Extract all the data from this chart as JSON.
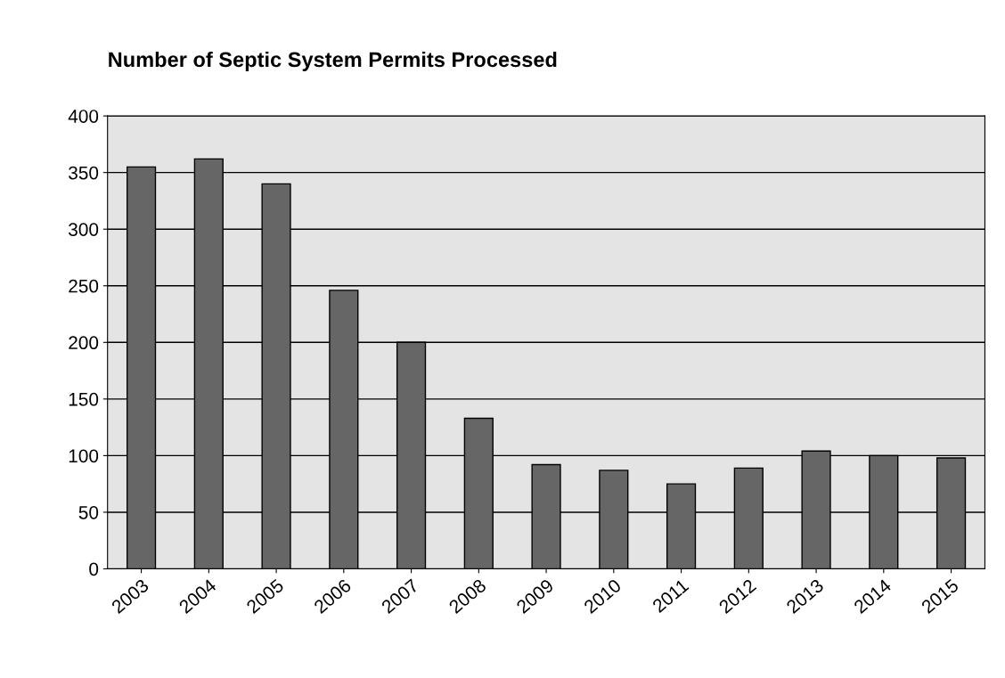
{
  "chart_data": {
    "type": "bar",
    "title": "Number of Septic System Permits Processed",
    "categories": [
      "2003",
      "2004",
      "2005",
      "2006",
      "2007",
      "2008",
      "2009",
      "2010",
      "2011",
      "2012",
      "2013",
      "2014",
      "2015"
    ],
    "values": [
      355,
      362,
      340,
      246,
      200,
      133,
      92,
      87,
      75,
      89,
      104,
      100,
      98
    ],
    "color": "#666666",
    "ylim": [
      0,
      400
    ],
    "yticks": [
      0,
      50,
      100,
      150,
      200,
      250,
      300,
      350,
      400
    ],
    "grid": "y",
    "legend": false
  }
}
